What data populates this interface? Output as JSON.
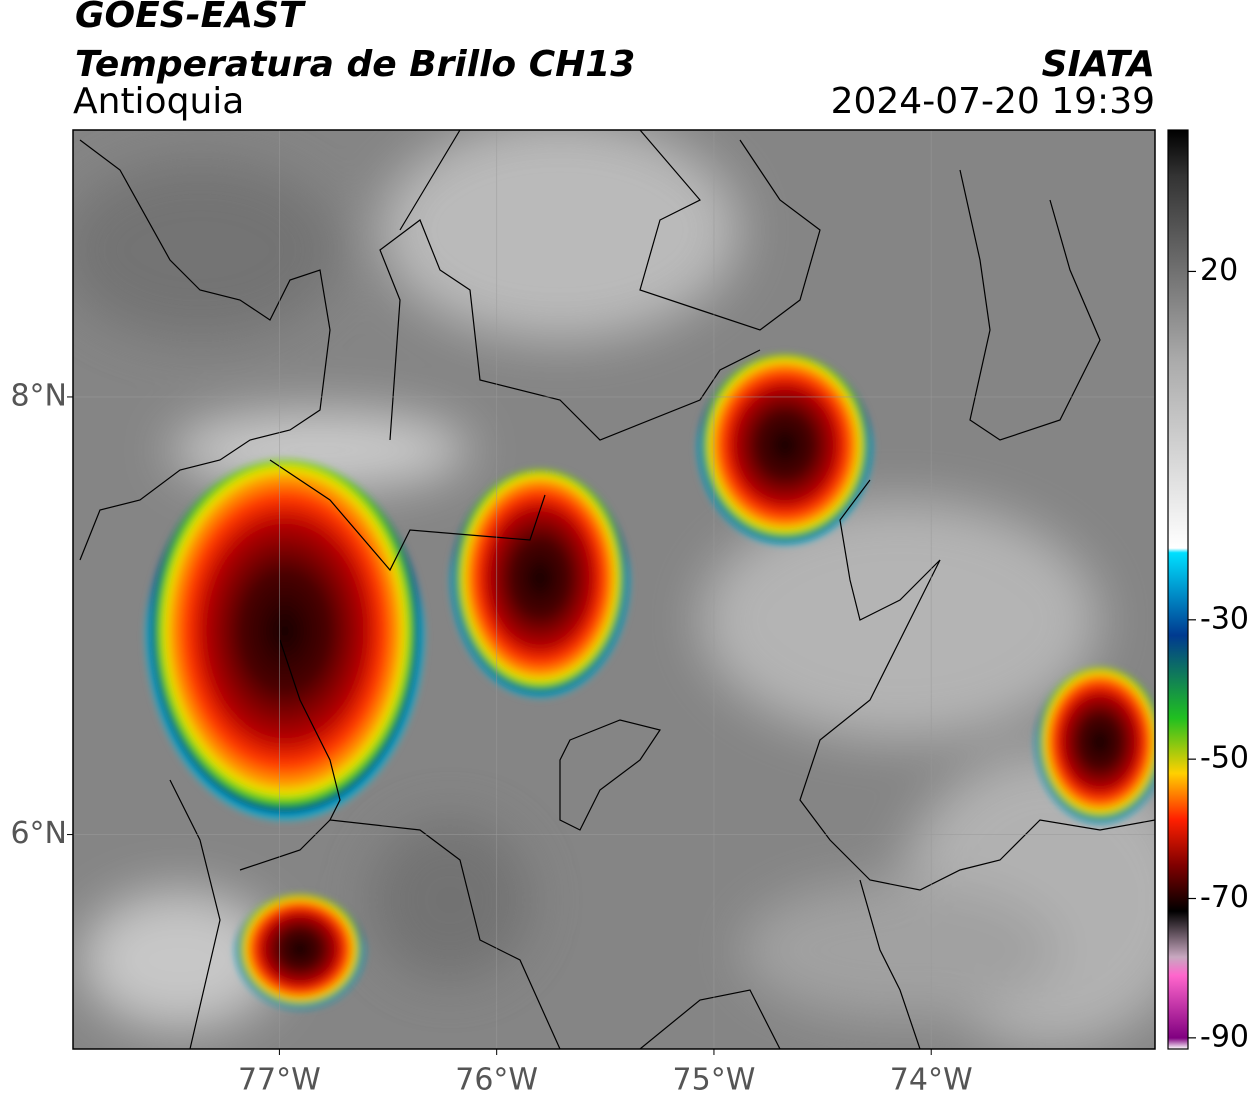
{
  "header": {
    "title": "GOES-EAST",
    "subtitle": "Temperatura de Brillo CH13",
    "region": "Antioquia",
    "source": "SIATA",
    "timestamp": "2024-07-20 19:39"
  },
  "map": {
    "xlim": [
      -77.95,
      -72.97
    ],
    "ylim": [
      5.02,
      9.22
    ],
    "xticks": [
      {
        "value": -77,
        "label": "77°W"
      },
      {
        "value": -76,
        "label": "76°W"
      },
      {
        "value": -75,
        "label": "75°W"
      },
      {
        "value": -74,
        "label": "74°W"
      }
    ],
    "yticks": [
      {
        "value": 6,
        "label": "6°N"
      },
      {
        "value": 8,
        "label": "8°N"
      }
    ],
    "grid": true
  },
  "colorbar": {
    "clim": [
      -91.6,
      40.3
    ],
    "ticks": [
      20,
      -30,
      -50,
      -70,
      -90
    ]
  }
}
